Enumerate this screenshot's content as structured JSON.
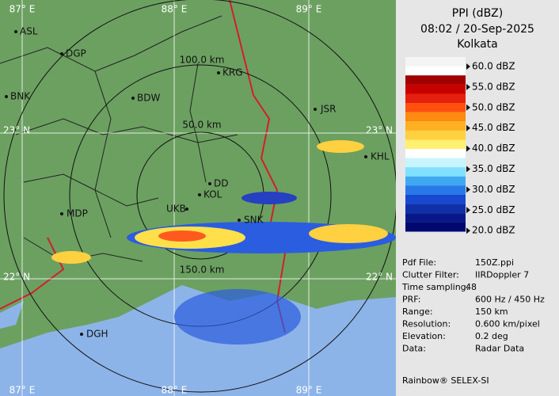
{
  "header": {
    "title": "PPI (dBZ)",
    "time": "08:02 / 20-Sep-2025",
    "station": "Kolkata"
  },
  "legend": {
    "labels": [
      "60.0 dBZ",
      "55.0 dBZ",
      "50.0 dBZ",
      "45.0 dBZ",
      "40.0 dBZ",
      "35.0 dBZ",
      "30.0 dBZ",
      "25.0 dBZ",
      "20.0 dBZ"
    ]
  },
  "info": {
    "rows": [
      [
        "Pdf File:",
        "150Z.ppi"
      ],
      [
        "Clutter Filter:",
        "IIRDoppler 7"
      ],
      [
        "Time sampling:",
        "48"
      ],
      [
        "PRF:",
        "600 Hz / 450 Hz"
      ],
      [
        "Range:",
        "150 km"
      ],
      [
        "Resolution:",
        "0.600 km/pixel"
      ],
      [
        "Elevation:",
        "0.2 deg"
      ],
      [
        "Data:",
        "Radar Data"
      ]
    ]
  },
  "footer": "Rainbow® SELEX-SI",
  "map": {
    "lon_top": [
      "87° E",
      "88° E",
      "89° E"
    ],
    "lon_bottom": [
      "87° E",
      "88° E",
      "89° E"
    ],
    "lat_left": [
      "23° N",
      "22° N"
    ],
    "lat_right": [
      "23° N",
      "22° N"
    ],
    "rings": [
      "50.0 km",
      "100.0 km",
      "150.0 km"
    ],
    "cities": [
      "ASL",
      "DGP",
      "BNK",
      "BDW",
      "KRG",
      "JSR",
      "KHL",
      "DD",
      "KOL",
      "UKB",
      "MDP",
      "SNK",
      "DGH"
    ]
  }
}
